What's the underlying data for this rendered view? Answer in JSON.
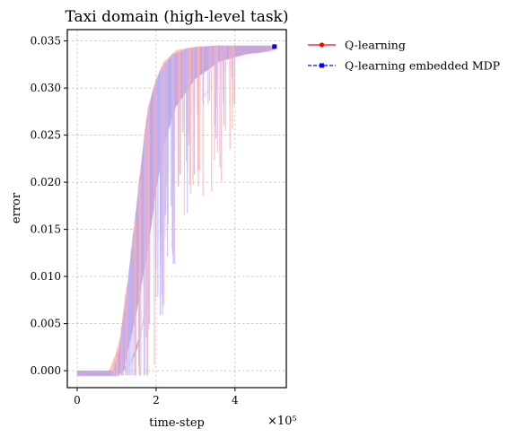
{
  "chart_data": {
    "type": "line",
    "title": "Taxi domain (high-level task)",
    "xlabel": "time-step",
    "ylabel": "error",
    "x_multiplier_label": "×10⁵",
    "xlim": [
      -0.25,
      5.3
    ],
    "ylim": [
      -0.0018,
      0.0362
    ],
    "x_ticks": [
      0,
      2,
      4
    ],
    "x_tick_labels": [
      "0",
      "2",
      "4"
    ],
    "y_ticks": [
      0.0,
      0.005,
      0.01,
      0.015,
      0.02,
      0.025,
      0.03,
      0.035
    ],
    "y_tick_labels": [
      "0.000",
      "0.005",
      "0.010",
      "0.015",
      "0.020",
      "0.025",
      "0.030",
      "0.035"
    ],
    "grid": true,
    "legend_position": "outside-right",
    "overlap_color": "#c8a2d8",
    "series": [
      {
        "name": "Q-learning",
        "color": "#ff0000",
        "marker": "circle",
        "band_color": "#ffb0b0",
        "upper": [
          [
            0,
            0
          ],
          [
            0.8,
            0
          ],
          [
            1.0,
            0.002
          ],
          [
            1.1,
            0.004
          ],
          [
            1.2,
            0.0075
          ],
          [
            1.3,
            0.01
          ],
          [
            1.4,
            0.014
          ],
          [
            1.5,
            0.017
          ],
          [
            1.6,
            0.021
          ],
          [
            1.7,
            0.025
          ],
          [
            1.8,
            0.028
          ],
          [
            2.0,
            0.031
          ],
          [
            2.2,
            0.0328
          ],
          [
            2.5,
            0.034
          ],
          [
            3.0,
            0.0344
          ],
          [
            3.5,
            0.0345
          ],
          [
            4.0,
            0.0345
          ],
          [
            5.0,
            0.0345
          ]
        ],
        "lower": [
          [
            0,
            -0.0005
          ],
          [
            1.0,
            -0.0005
          ],
          [
            1.3,
            0.0005
          ],
          [
            1.5,
            0.002
          ],
          [
            1.7,
            0.006
          ],
          [
            1.9,
            0.011
          ],
          [
            2.1,
            0.016
          ],
          [
            2.3,
            0.021
          ],
          [
            2.6,
            0.025
          ],
          [
            3.0,
            0.028
          ],
          [
            3.5,
            0.0305
          ],
          [
            4.0,
            0.0325
          ],
          [
            4.5,
            0.0335
          ],
          [
            5.0,
            0.034
          ]
        ]
      },
      {
        "name": "Q-learning embedded MDP",
        "color": "#0000ff",
        "marker": "square",
        "band_color": "#b8b8ff",
        "upper": [
          [
            0,
            0
          ],
          [
            0.9,
            0
          ],
          [
            1.05,
            0.002
          ],
          [
            1.15,
            0.005
          ],
          [
            1.25,
            0.008
          ],
          [
            1.35,
            0.012
          ],
          [
            1.45,
            0.0155
          ],
          [
            1.55,
            0.0195
          ],
          [
            1.65,
            0.023
          ],
          [
            1.75,
            0.0265
          ],
          [
            1.9,
            0.0295
          ],
          [
            2.1,
            0.0318
          ],
          [
            2.4,
            0.0335
          ],
          [
            2.8,
            0.0342
          ],
          [
            3.5,
            0.0345
          ],
          [
            5.0,
            0.0345
          ]
        ],
        "lower": [
          [
            0,
            -0.0006
          ],
          [
            1.05,
            -0.0006
          ],
          [
            1.35,
            0.0006
          ],
          [
            1.55,
            0.0025
          ],
          [
            1.75,
            0.0065
          ],
          [
            1.95,
            0.0115
          ],
          [
            2.15,
            0.0165
          ],
          [
            2.35,
            0.0215
          ],
          [
            2.65,
            0.0255
          ],
          [
            3.05,
            0.0285
          ],
          [
            3.55,
            0.031
          ],
          [
            4.05,
            0.0328
          ],
          [
            4.55,
            0.0337
          ],
          [
            5.0,
            0.0341
          ]
        ]
      }
    ],
    "end_marker": {
      "series": "Q-learning embedded MDP",
      "x": 5.0,
      "y": 0.0344
    }
  }
}
